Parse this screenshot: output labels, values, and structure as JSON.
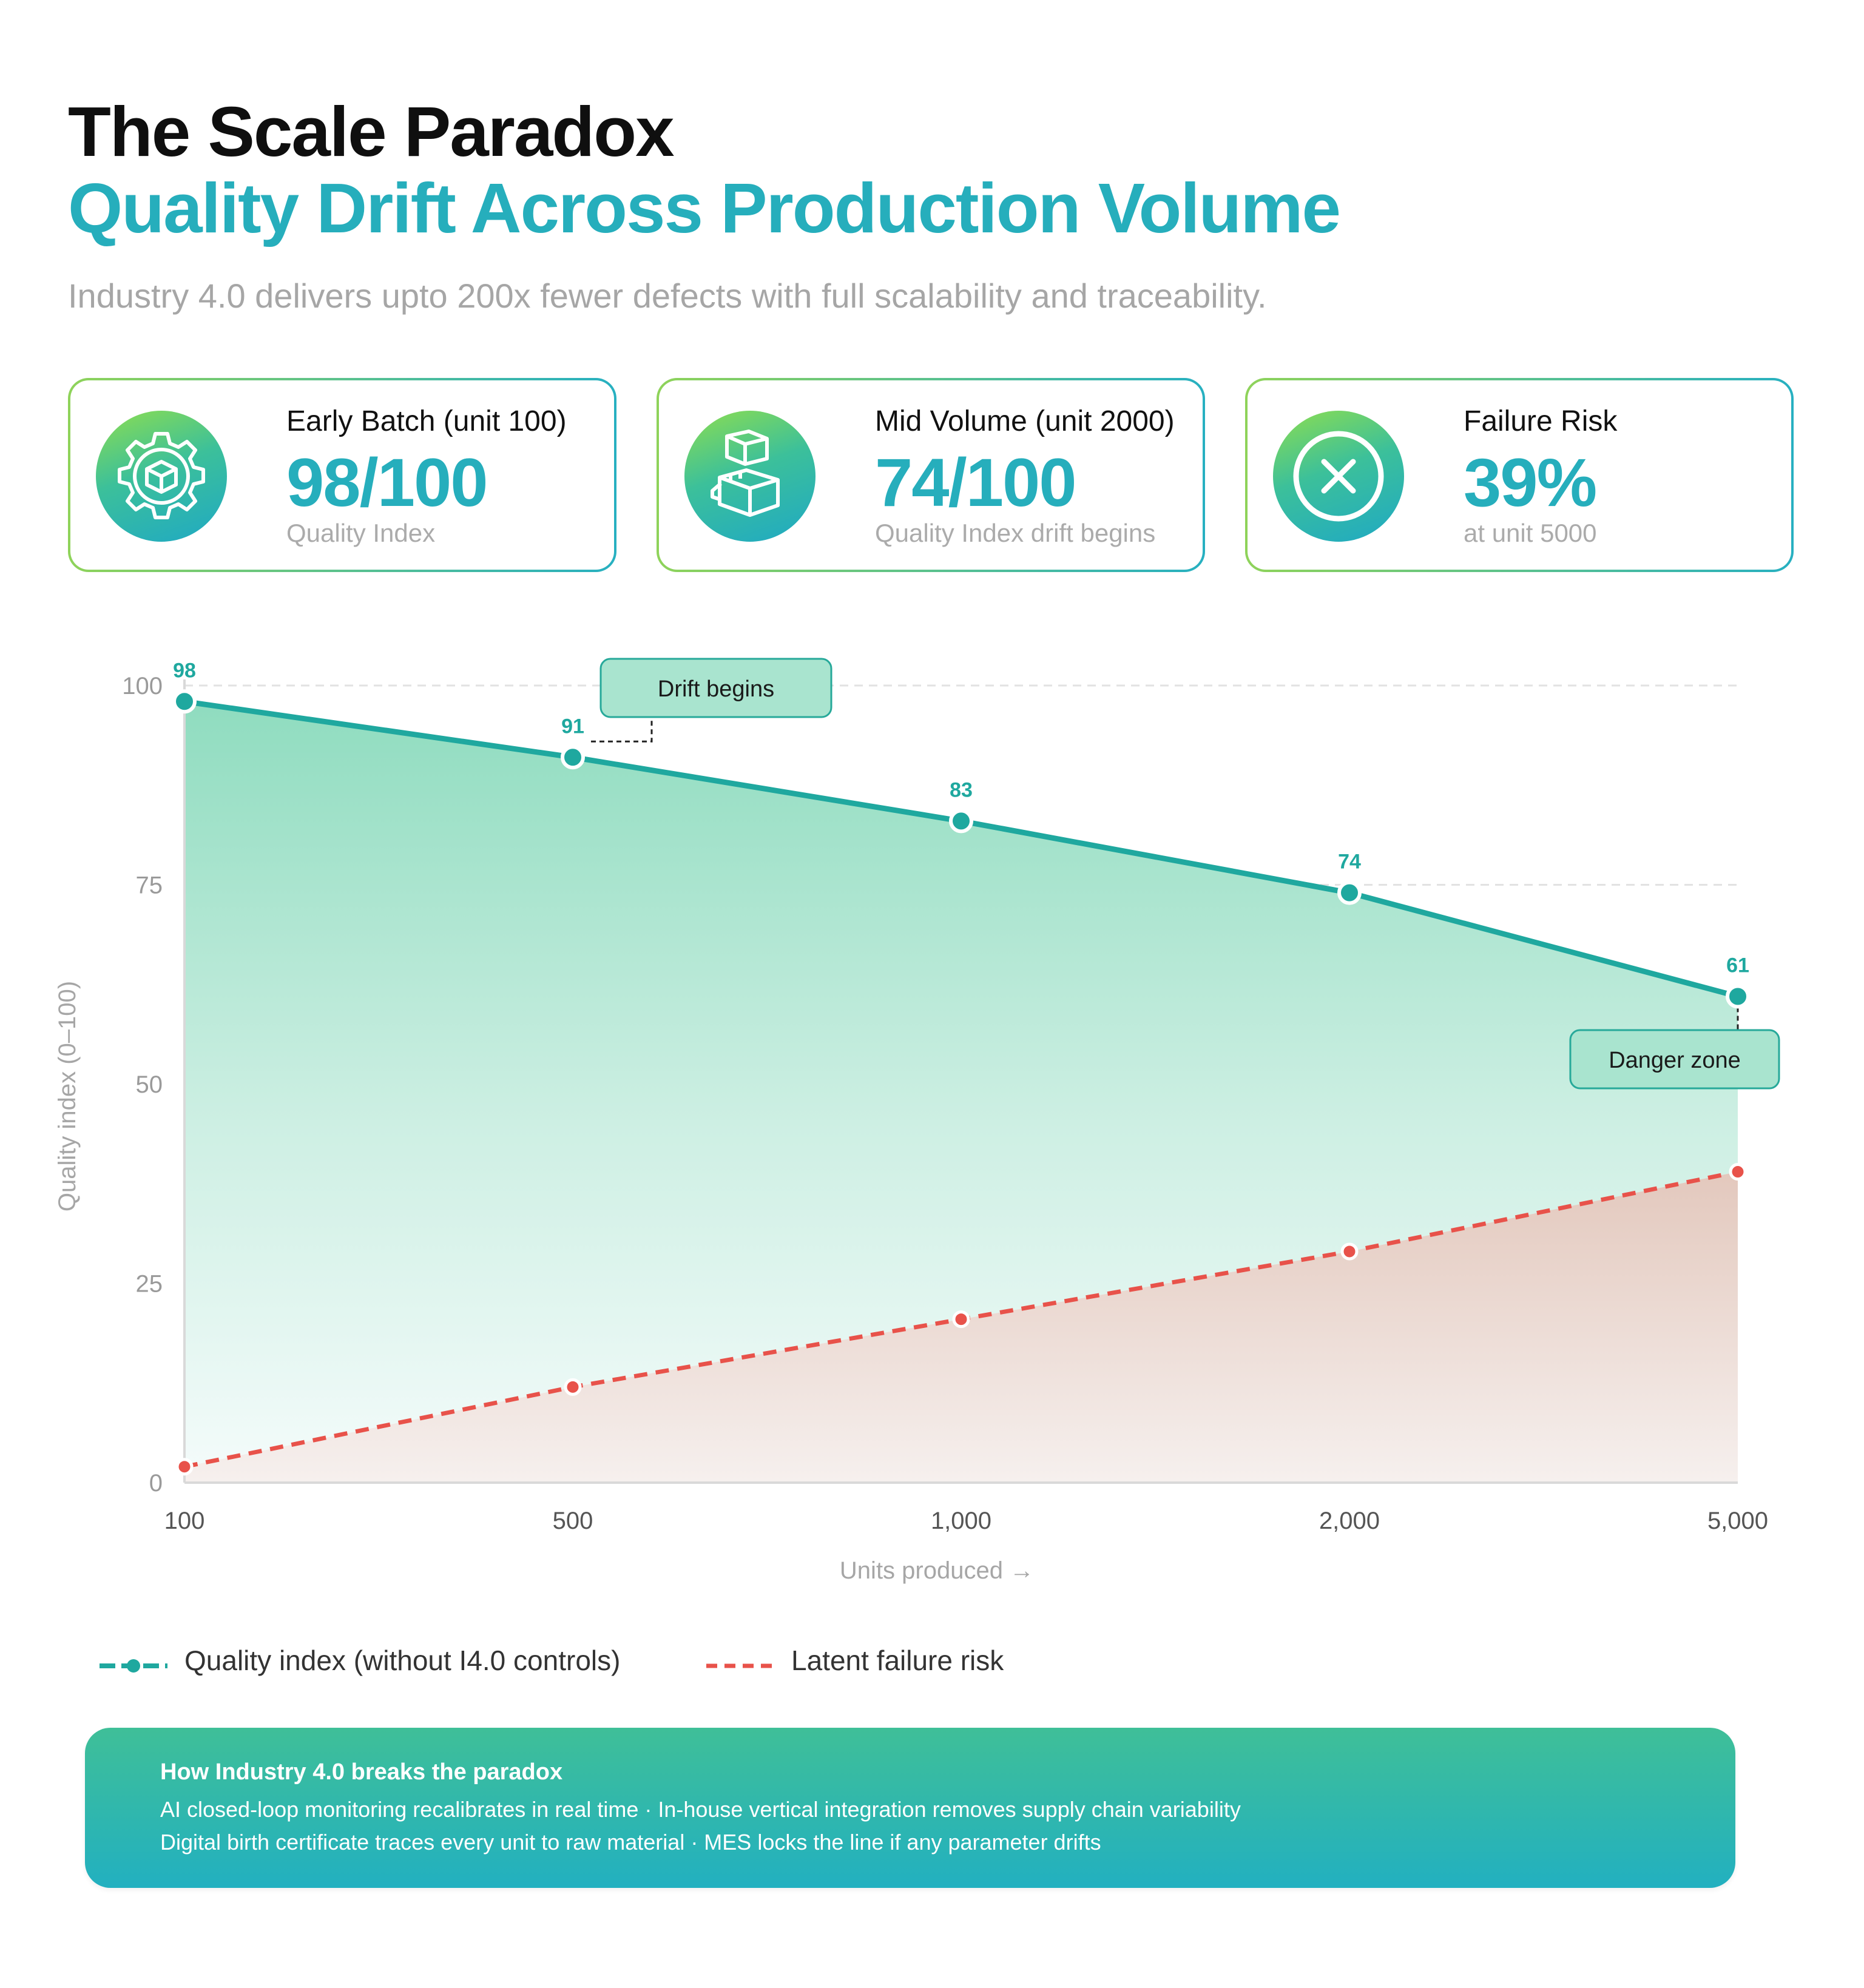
{
  "header": {
    "title": "The Scale Paradox",
    "subtitle": "Quality Drift Across Production Volume",
    "tagline": "Industry 4.0 delivers upto 200x fewer defects with full scalability and traceability."
  },
  "cards": [
    {
      "label": "Early Batch (unit 100)",
      "value": "98/100",
      "note": "Quality Index",
      "icon": "gear-box-icon"
    },
    {
      "label": "Mid Volume (unit 2000)",
      "value": "74/100",
      "note": "Quality Index drift begins",
      "icon": "stacked-boxes-icon"
    },
    {
      "label": "Failure Risk",
      "value": "39%",
      "note": "at unit 5000",
      "icon": "close-circle-icon"
    }
  ],
  "colors": {
    "teal": "#1fa89f",
    "accent": "#26aebc",
    "risk": "#e8524a",
    "green": "#8fd35a"
  },
  "chart_data": {
    "type": "area",
    "x": [
      "100",
      "500",
      "1,000",
      "2,000",
      "5,000"
    ],
    "xlabel": "Units produced →",
    "ylabel": "Quality index (0–100)",
    "ylim": [
      0,
      100
    ],
    "yticks": [
      "0",
      "25",
      "50",
      "75",
      "100"
    ],
    "grid": true,
    "series": [
      {
        "name": "Quality index (without I4.0 controls)",
        "values": [
          98,
          91,
          83,
          74,
          61
        ],
        "labels": [
          "98",
          "91",
          "83",
          "74",
          "61"
        ],
        "style": "solid"
      },
      {
        "name": "Latent failure risk",
        "values": [
          2,
          12,
          20.5,
          29,
          39
        ],
        "style": "dashed"
      }
    ],
    "annotations": [
      {
        "text": "Drift begins",
        "at": "500"
      },
      {
        "text": "Danger zone",
        "at": "5,000"
      }
    ]
  },
  "info": {
    "title": "How Industry 4.0 breaks the paradox",
    "lines": [
      "AI closed-loop monitoring recalibrates in real time · In-house vertical integration removes supply chain variability",
      "Digital birth certificate traces every unit to raw material · MES locks the line if any parameter drifts"
    ]
  }
}
